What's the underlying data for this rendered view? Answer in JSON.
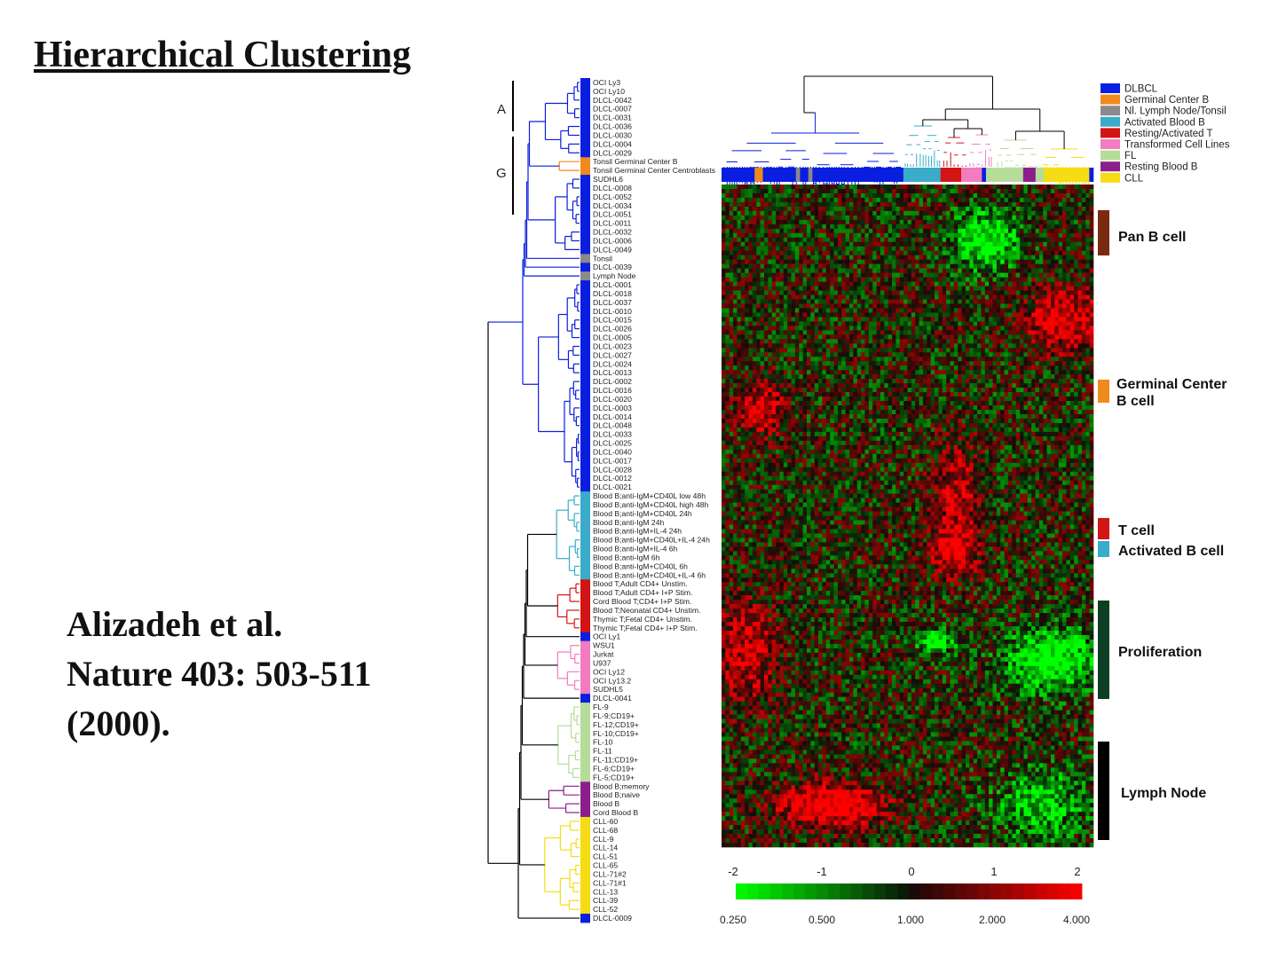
{
  "slide": {
    "title": "Hierarchical Clustering",
    "citation": [
      "Alizadeh et al.",
      "Nature 403: 503-511",
      "(2000)."
    ]
  },
  "figure": {
    "cluster_markers": [
      "A",
      "G"
    ],
    "sample_groups": [
      {
        "name": "DLBCL",
        "color": "#0a1ee0"
      },
      {
        "name": "Germinal Center B",
        "color": "#f08a1e"
      },
      {
        "name": "Nl. Lymph Node/Tonsil",
        "color": "#8a8a8a"
      },
      {
        "name": "Activated Blood B",
        "color": "#3aabc8"
      },
      {
        "name": "Resting/Activated T",
        "color": "#d21414"
      },
      {
        "name": "Transformed Cell Lines",
        "color": "#f27cbf"
      },
      {
        "name": "FL",
        "color": "#b6dc9a"
      },
      {
        "name": "Resting Blood B",
        "color": "#8c1e8c"
      },
      {
        "name": "CLL",
        "color": "#f5dc14"
      }
    ],
    "samples": [
      {
        "name": "OCI Ly3",
        "group": 0
      },
      {
        "name": "OCI Ly10",
        "group": 0
      },
      {
        "name": "DLCL-0042",
        "group": 0
      },
      {
        "name": "DLCL-0007",
        "group": 0
      },
      {
        "name": "DLCL-0031",
        "group": 0
      },
      {
        "name": "DLCL-0036",
        "group": 0
      },
      {
        "name": "DLCL-0030",
        "group": 0
      },
      {
        "name": "DLCL-0004",
        "group": 0
      },
      {
        "name": "DLCL-0029",
        "group": 0
      },
      {
        "name": "Tonsil Germinal Center B",
        "group": 1
      },
      {
        "name": "Tonsil Germinal Center Centroblasts",
        "group": 1
      },
      {
        "name": "SUDHL6",
        "group": 0
      },
      {
        "name": "DLCL-0008",
        "group": 0
      },
      {
        "name": "DLCL-0052",
        "group": 0
      },
      {
        "name": "DLCL-0034",
        "group": 0
      },
      {
        "name": "DLCL-0051",
        "group": 0
      },
      {
        "name": "DLCL-0011",
        "group": 0
      },
      {
        "name": "DLCL-0032",
        "group": 0
      },
      {
        "name": "DLCL-0006",
        "group": 0
      },
      {
        "name": "DLCL-0049",
        "group": 0
      },
      {
        "name": "Tonsil",
        "group": 2
      },
      {
        "name": "DLCL-0039",
        "group": 0
      },
      {
        "name": "Lymph Node",
        "group": 2
      },
      {
        "name": "DLCL-0001",
        "group": 0
      },
      {
        "name": "DLCL-0018",
        "group": 0
      },
      {
        "name": "DLCL-0037",
        "group": 0
      },
      {
        "name": "DLCL-0010",
        "group": 0
      },
      {
        "name": "DLCL-0015",
        "group": 0
      },
      {
        "name": "DLCL-0026",
        "group": 0
      },
      {
        "name": "DLCL-0005",
        "group": 0
      },
      {
        "name": "DLCL-0023",
        "group": 0
      },
      {
        "name": "DLCL-0027",
        "group": 0
      },
      {
        "name": "DLCL-0024",
        "group": 0
      },
      {
        "name": "DLCL-0013",
        "group": 0
      },
      {
        "name": "DLCL-0002",
        "group": 0
      },
      {
        "name": "DLCL-0016",
        "group": 0
      },
      {
        "name": "DLCL-0020",
        "group": 0
      },
      {
        "name": "DLCL-0003",
        "group": 0
      },
      {
        "name": "DLCL-0014",
        "group": 0
      },
      {
        "name": "DLCL-0048",
        "group": 0
      },
      {
        "name": "DLCL-0033",
        "group": 0
      },
      {
        "name": "DLCL-0025",
        "group": 0
      },
      {
        "name": "DLCL-0040",
        "group": 0
      },
      {
        "name": "DLCL-0017",
        "group": 0
      },
      {
        "name": "DLCL-0028",
        "group": 0
      },
      {
        "name": "DLCL-0012",
        "group": 0
      },
      {
        "name": "DLCL-0021",
        "group": 0
      },
      {
        "name": "Blood B;anti-IgM+CD40L low 48h",
        "group": 3
      },
      {
        "name": "Blood B;anti-IgM+CD40L high 48h",
        "group": 3
      },
      {
        "name": "Blood B;anti-IgM+CD40L 24h",
        "group": 3
      },
      {
        "name": "Blood B;anti-IgM 24h",
        "group": 3
      },
      {
        "name": "Blood B;anti-IgM+IL-4 24h",
        "group": 3
      },
      {
        "name": "Blood B;anti-IgM+CD40L+IL-4 24h",
        "group": 3
      },
      {
        "name": "Blood B;anti-IgM+IL-4 6h",
        "group": 3
      },
      {
        "name": "Blood B;anti-IgM 6h",
        "group": 3
      },
      {
        "name": "Blood B;anti-IgM+CD40L 6h",
        "group": 3
      },
      {
        "name": "Blood B;anti-IgM+CD40L+IL-4 6h",
        "group": 3
      },
      {
        "name": "Blood T;Adult CD4+ Unstim.",
        "group": 4
      },
      {
        "name": "Blood T;Adult CD4+ I+P Stim.",
        "group": 4
      },
      {
        "name": "Cord Blood T;CD4+ I+P Stim.",
        "group": 4
      },
      {
        "name": "Blood T;Neonatal CD4+ Unstim.",
        "group": 4
      },
      {
        "name": "Thymic T;Fetal CD4+ Unstim.",
        "group": 4
      },
      {
        "name": "Thymic T;Fetal CD4+ I+P Stim.",
        "group": 4
      },
      {
        "name": "OCI Ly1",
        "group": 0
      },
      {
        "name": "WSU1",
        "group": 5
      },
      {
        "name": "Jurkat",
        "group": 5
      },
      {
        "name": "U937",
        "group": 5
      },
      {
        "name": "OCI Ly12",
        "group": 5
      },
      {
        "name": "OCI Ly13.2",
        "group": 5
      },
      {
        "name": "SUDHL5",
        "group": 5
      },
      {
        "name": "DLCL-0041",
        "group": 0
      },
      {
        "name": "FL-9",
        "group": 6
      },
      {
        "name": "FL-9;CD19+",
        "group": 6
      },
      {
        "name": "FL-12;CD19+",
        "group": 6
      },
      {
        "name": "FL-10;CD19+",
        "group": 6
      },
      {
        "name": "FL-10",
        "group": 6
      },
      {
        "name": "FL-11",
        "group": 6
      },
      {
        "name": "FL-11;CD19+",
        "group": 6
      },
      {
        "name": "FL-6;CD19+",
        "group": 6
      },
      {
        "name": "FL-5;CD19+",
        "group": 6
      },
      {
        "name": "Blood B;memory",
        "group": 7
      },
      {
        "name": "Blood B;naive",
        "group": 7
      },
      {
        "name": "Blood B",
        "group": 7
      },
      {
        "name": "Cord Blood B",
        "group": 7
      },
      {
        "name": "CLL-60",
        "group": 8
      },
      {
        "name": "CLL-68",
        "group": 8
      },
      {
        "name": "CLL-9",
        "group": 8
      },
      {
        "name": "CLL-14",
        "group": 8
      },
      {
        "name": "CLL-51",
        "group": 8
      },
      {
        "name": "CLL-65",
        "group": 8
      },
      {
        "name": "CLL-71#2",
        "group": 8
      },
      {
        "name": "CLL-71#1",
        "group": 8
      },
      {
        "name": "CLL-13",
        "group": 8
      },
      {
        "name": "CLL-39",
        "group": 8
      },
      {
        "name": "CLL-52",
        "group": 8
      },
      {
        "name": "DLCL-0009",
        "group": 0
      }
    ],
    "gene_clusters": [
      {
        "label": "Pan B cell",
        "color": "#7a2a10"
      },
      {
        "label": "Germinal Center\nB cell",
        "color": "#f08a1e"
      },
      {
        "label": "T cell",
        "color": "#d21414"
      },
      {
        "label": "Activated B cell",
        "color": "#3aabc8"
      },
      {
        "label": "Proliferation",
        "color": "#0e3f22"
      },
      {
        "label": "Lymph Node",
        "color": "#000000"
      }
    ],
    "color_scale": {
      "log_ticks": [
        "-2",
        "-1",
        "0",
        "1",
        "2"
      ],
      "ratio_ticks": [
        "0.250",
        "0.500",
        "1.000",
        "2.000",
        "4.000"
      ]
    }
  }
}
